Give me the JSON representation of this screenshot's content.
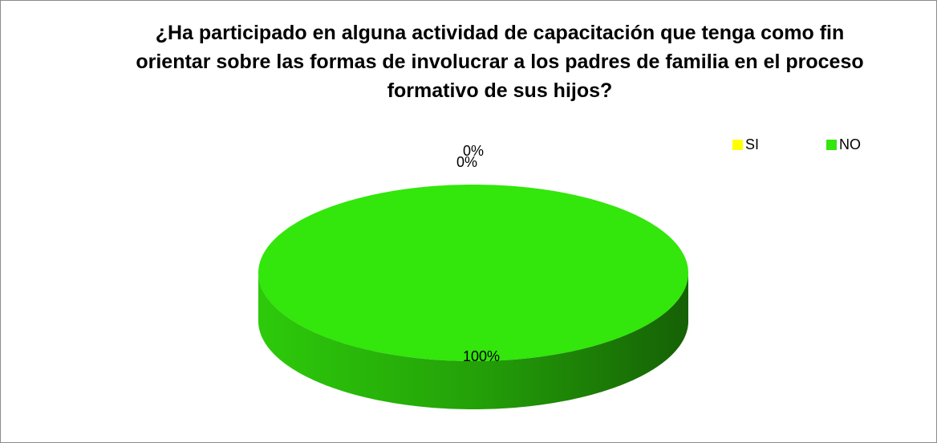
{
  "chart_data": {
    "type": "pie3d",
    "title": "¿Ha participado en alguna actividad de capacitación que tenga como fin orientar sobre las formas de involucrar a los padres de familia en el proceso formativo de sus hijos?",
    "categories": [
      "SI",
      "NO",
      null
    ],
    "values": [
      0,
      100,
      0
    ],
    "value_labels": [
      "0%",
      "100%",
      "0%"
    ],
    "colors": [
      "#ffff00",
      "#33e60c"
    ],
    "legend": "top-right"
  }
}
